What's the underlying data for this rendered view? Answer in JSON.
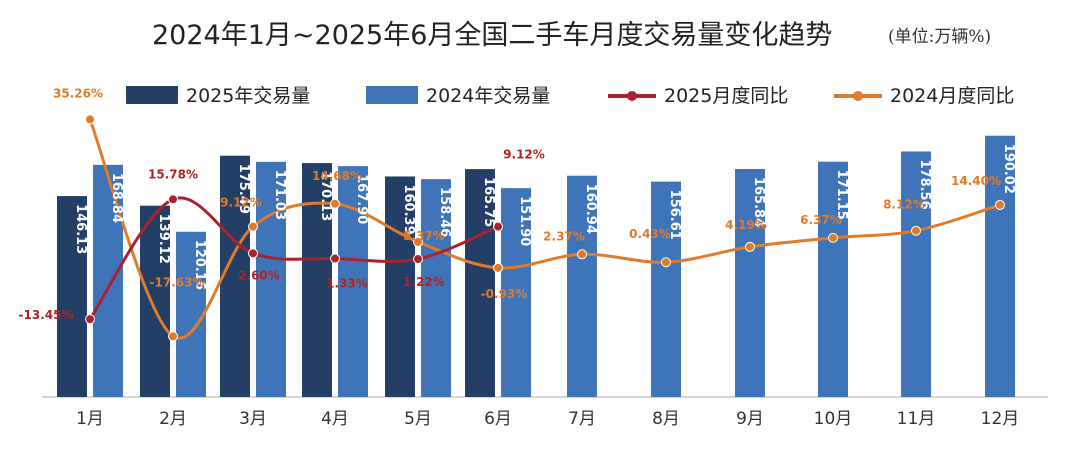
{
  "chart_data": {
    "type": "bar",
    "title": "2024年1月~2025年6月全国二手车月度交易量变化趋势",
    "unit": "(单位:万辆%)",
    "categories": [
      "1月",
      "2月",
      "3月",
      "4月",
      "5月",
      "6月",
      "7月",
      "8月",
      "9月",
      "10月",
      "11月",
      "12月"
    ],
    "series": [
      {
        "name": "2025年交易量",
        "kind": "bar",
        "color": "#243f66",
        "values": [
          146.13,
          139.12,
          175.49,
          170.13,
          160.39,
          165.75,
          null,
          null,
          null,
          null,
          null,
          null
        ],
        "labels": [
          "146.13",
          "139.12",
          "175.49",
          "170.13",
          "160.39",
          "165.75",
          "",
          "",
          "",
          "",
          "",
          ""
        ]
      },
      {
        "name": "2024年交易量",
        "kind": "bar",
        "color": "#3f75b8",
        "values": [
          168.84,
          120.16,
          171.03,
          167.9,
          158.46,
          151.9,
          160.94,
          156.61,
          165.84,
          171.15,
          178.56,
          190.02
        ],
        "labels": [
          "168.84",
          "120.16",
          "171.03",
          "167.90",
          "158.46",
          "151.90",
          "160.94",
          "156.61",
          "165.84",
          "171.15",
          "178.56",
          "190.02"
        ]
      },
      {
        "name": "2025月度同比",
        "kind": "line",
        "color": "#a9232f",
        "values": [
          -13.45,
          15.78,
          2.6,
          1.33,
          1.22,
          9.12,
          null,
          null,
          null,
          null,
          null,
          null
        ],
        "labels": [
          "-13.45%",
          "15.78%",
          "2.60%",
          "1.33%",
          "1.22%",
          "9.12%",
          "",
          "",
          "",
          "",
          "",
          ""
        ]
      },
      {
        "name": "2024月度同比",
        "kind": "line",
        "color": "#e07b2c",
        "values": [
          35.26,
          -17.63,
          9.12,
          14.68,
          5.37,
          -0.93,
          2.37,
          0.43,
          4.19,
          6.37,
          8.12,
          14.4
        ],
        "labels": [
          "35.26%",
          "-17.63%",
          "9.12%",
          "14.68%",
          "5.37%",
          "-0.93%",
          "2.37%",
          "0.43%",
          "4.19%",
          "6.37%",
          "8.12%",
          "14.40%"
        ]
      }
    ],
    "bar_ylim": [
      0,
      200
    ],
    "line_ylim": [
      -30,
      40
    ],
    "legend": "top",
    "grid": false
  }
}
